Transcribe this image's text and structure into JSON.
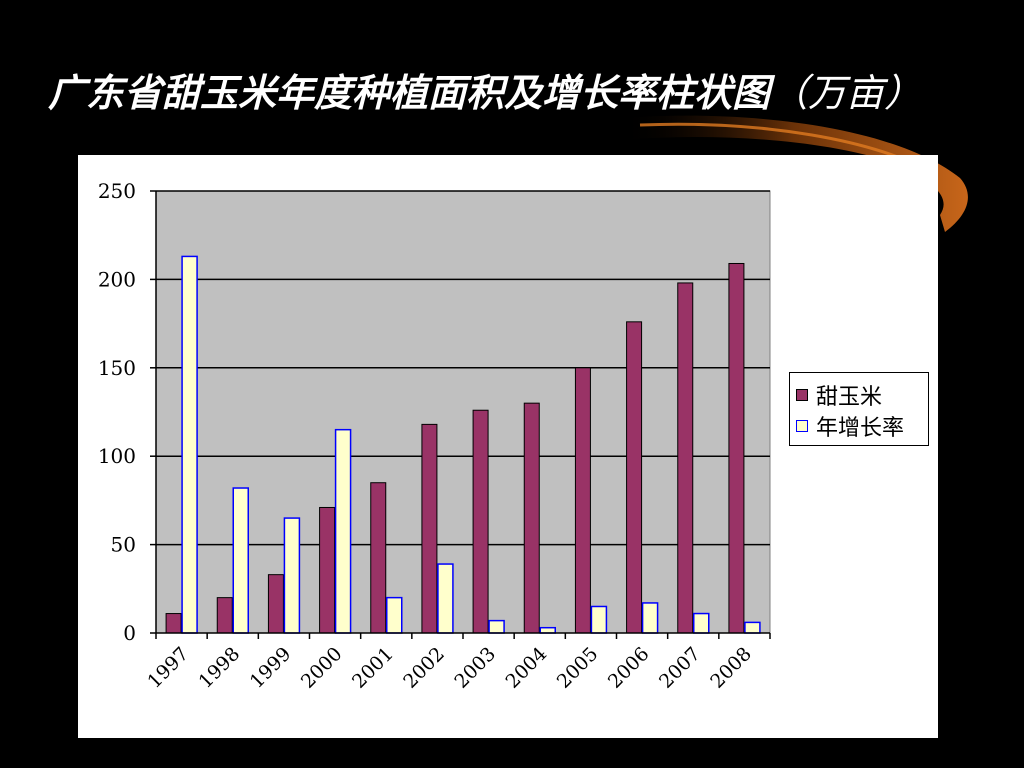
{
  "slide": {
    "title": "广东省甜玉米年度种植面积及增长率柱状图",
    "title_unit": "（万亩）"
  },
  "colors": {
    "background": "#000000",
    "plot_area": "#c0c0c0",
    "series_1_fill": "#993366",
    "series_2_fill": "#ffffcc",
    "series_2_border": "#0000ff",
    "decoration": "#b35a10"
  },
  "chart_data": {
    "type": "bar",
    "categories": [
      "1997",
      "1998",
      "1999",
      "2000",
      "2001",
      "2002",
      "2003",
      "2004",
      "2005",
      "2006",
      "2007",
      "2008"
    ],
    "series": [
      {
        "name": "甜玉米",
        "values": [
          11,
          20,
          33,
          71,
          85,
          118,
          126,
          130,
          150,
          176,
          198,
          209
        ]
      },
      {
        "name": "年增长率",
        "values": [
          213,
          82,
          65,
          115,
          20,
          39,
          7,
          3,
          15,
          17,
          11,
          6
        ]
      }
    ],
    "ylim": [
      0,
      250
    ],
    "yticks": [
      0,
      50,
      100,
      150,
      200,
      250
    ],
    "xlabel": "",
    "ylabel": "",
    "grid": true,
    "legend_position": "right"
  }
}
